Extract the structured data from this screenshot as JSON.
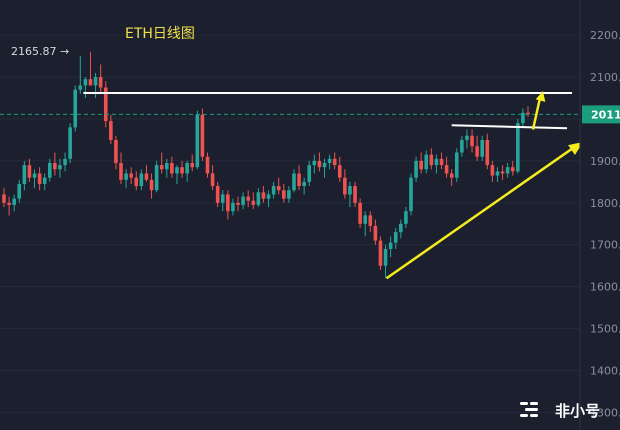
{
  "chart_data": {
    "type": "candlestick",
    "title": "ETH日线图",
    "yticks": [
      "1300.",
      "1400.",
      "1500.",
      "1600.",
      "1700.",
      "1800.",
      "1900.",
      "2000.",
      "2100.",
      "2200."
    ],
    "ylim": [
      1270,
      2260
    ],
    "current_price": {
      "label": "2011.",
      "value": 2011
    },
    "high_annotation": {
      "label": "2165.87",
      "value": 2165.87
    },
    "resistance_levels": [
      2062,
      1985,
      1978
    ],
    "trendline": {
      "from_value": 1620,
      "to_value": 1945
    },
    "candles": [
      [
        1820,
        1835,
        1790,
        1800
      ],
      [
        1800,
        1815,
        1770,
        1795
      ],
      [
        1795,
        1820,
        1780,
        1810
      ],
      [
        1810,
        1855,
        1800,
        1845
      ],
      [
        1845,
        1900,
        1830,
        1890
      ],
      [
        1890,
        1905,
        1850,
        1860
      ],
      [
        1860,
        1880,
        1835,
        1870
      ],
      [
        1870,
        1885,
        1830,
        1845
      ],
      [
        1845,
        1870,
        1830,
        1860
      ],
      [
        1860,
        1905,
        1850,
        1895
      ],
      [
        1895,
        1920,
        1865,
        1880
      ],
      [
        1880,
        1905,
        1860,
        1890
      ],
      [
        1890,
        1920,
        1875,
        1905
      ],
      [
        1905,
        1990,
        1895,
        1980
      ],
      [
        1980,
        2080,
        1970,
        2070
      ],
      [
        2070,
        2150,
        2060,
        2080
      ],
      [
        2080,
        2100,
        2050,
        2095
      ],
      [
        2095,
        2160,
        2080,
        2080
      ],
      [
        2080,
        2110,
        2050,
        2100
      ],
      [
        2100,
        2130,
        2060,
        2075
      ],
      [
        2075,
        2090,
        1980,
        1995
      ],
      [
        1995,
        2010,
        1940,
        1950
      ],
      [
        1950,
        1960,
        1880,
        1895
      ],
      [
        1895,
        1920,
        1845,
        1855
      ],
      [
        1855,
        1880,
        1835,
        1870
      ],
      [
        1870,
        1885,
        1845,
        1860
      ],
      [
        1860,
        1875,
        1830,
        1840
      ],
      [
        1840,
        1880,
        1830,
        1870
      ],
      [
        1870,
        1890,
        1850,
        1855
      ],
      [
        1855,
        1870,
        1810,
        1830
      ],
      [
        1830,
        1900,
        1825,
        1890
      ],
      [
        1890,
        1920,
        1870,
        1880
      ],
      [
        1880,
        1905,
        1860,
        1895
      ],
      [
        1895,
        1910,
        1860,
        1870
      ],
      [
        1870,
        1890,
        1845,
        1885
      ],
      [
        1885,
        1900,
        1860,
        1870
      ],
      [
        1870,
        1900,
        1850,
        1895
      ],
      [
        1895,
        1915,
        1875,
        1885
      ],
      [
        1885,
        2020,
        1880,
        2010
      ],
      [
        2010,
        2025,
        1900,
        1910
      ],
      [
        1910,
        1920,
        1860,
        1870
      ],
      [
        1870,
        1890,
        1830,
        1840
      ],
      [
        1840,
        1850,
        1790,
        1800
      ],
      [
        1800,
        1830,
        1780,
        1820
      ],
      [
        1820,
        1830,
        1760,
        1780
      ],
      [
        1780,
        1810,
        1770,
        1800
      ],
      [
        1800,
        1815,
        1780,
        1795
      ],
      [
        1795,
        1825,
        1785,
        1815
      ],
      [
        1815,
        1830,
        1790,
        1805
      ],
      [
        1805,
        1825,
        1785,
        1795
      ],
      [
        1795,
        1835,
        1790,
        1825
      ],
      [
        1825,
        1840,
        1800,
        1810
      ],
      [
        1810,
        1830,
        1790,
        1820
      ],
      [
        1820,
        1850,
        1810,
        1840
      ],
      [
        1840,
        1860,
        1820,
        1830
      ],
      [
        1830,
        1845,
        1800,
        1810
      ],
      [
        1810,
        1840,
        1800,
        1830
      ],
      [
        1830,
        1880,
        1825,
        1870
      ],
      [
        1870,
        1890,
        1830,
        1840
      ],
      [
        1840,
        1860,
        1820,
        1850
      ],
      [
        1850,
        1900,
        1840,
        1890
      ],
      [
        1890,
        1915,
        1870,
        1900
      ],
      [
        1900,
        1920,
        1875,
        1885
      ],
      [
        1885,
        1905,
        1860,
        1895
      ],
      [
        1895,
        1915,
        1880,
        1905
      ],
      [
        1905,
        1920,
        1880,
        1890
      ],
      [
        1890,
        1910,
        1850,
        1860
      ],
      [
        1860,
        1880,
        1810,
        1820
      ],
      [
        1820,
        1850,
        1790,
        1840
      ],
      [
        1840,
        1850,
        1790,
        1800
      ],
      [
        1800,
        1810,
        1740,
        1750
      ],
      [
        1750,
        1780,
        1720,
        1770
      ],
      [
        1770,
        1780,
        1730,
        1745
      ],
      [
        1745,
        1760,
        1700,
        1710
      ],
      [
        1710,
        1720,
        1640,
        1650
      ],
      [
        1650,
        1700,
        1620,
        1690
      ],
      [
        1690,
        1720,
        1670,
        1705
      ],
      [
        1705,
        1740,
        1690,
        1730
      ],
      [
        1730,
        1760,
        1715,
        1750
      ],
      [
        1750,
        1790,
        1740,
        1780
      ],
      [
        1780,
        1870,
        1770,
        1860
      ],
      [
        1860,
        1910,
        1850,
        1900
      ],
      [
        1900,
        1920,
        1870,
        1880
      ],
      [
        1880,
        1925,
        1870,
        1915
      ],
      [
        1915,
        1930,
        1880,
        1890
      ],
      [
        1890,
        1915,
        1870,
        1905
      ],
      [
        1905,
        1920,
        1880,
        1890
      ],
      [
        1890,
        1910,
        1860,
        1870
      ],
      [
        1870,
        1880,
        1840,
        1860
      ],
      [
        1860,
        1930,
        1850,
        1920
      ],
      [
        1920,
        1960,
        1910,
        1950
      ],
      [
        1950,
        1975,
        1930,
        1960
      ],
      [
        1960,
        1975,
        1920,
        1935
      ],
      [
        1935,
        1960,
        1900,
        1910
      ],
      [
        1910,
        1960,
        1900,
        1950
      ],
      [
        1950,
        1965,
        1880,
        1890
      ],
      [
        1890,
        1900,
        1850,
        1865
      ],
      [
        1865,
        1885,
        1850,
        1875
      ],
      [
        1875,
        1890,
        1855,
        1870
      ],
      [
        1870,
        1895,
        1860,
        1885
      ],
      [
        1885,
        1900,
        1865,
        1875
      ],
      [
        1875,
        2000,
        1870,
        1990
      ],
      [
        1990,
        2025,
        1980,
        2015
      ],
      [
        2015,
        2030,
        2005,
        2011
      ]
    ]
  },
  "watermark": {
    "text": "非小号"
  },
  "colors": {
    "up": "#26a69a",
    "down": "#ef5350",
    "trend": "#f5ec1d",
    "level": "#ffffff",
    "tag": "#1a9e7d"
  }
}
